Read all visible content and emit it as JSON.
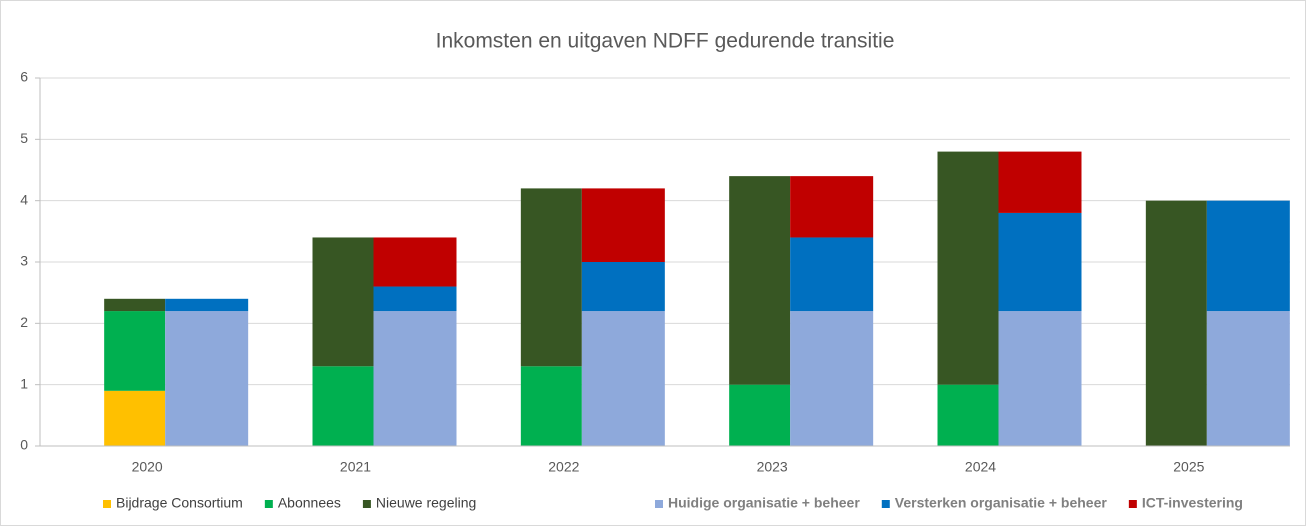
{
  "chart_data": {
    "type": "stacked-bar-groups",
    "title": "Inkomsten en uitgaven NDFF gedurende transitie",
    "categories": [
      "2020",
      "2021",
      "2022",
      "2023",
      "2024",
      "2025"
    ],
    "ylim": [
      0,
      6
    ],
    "yticks": [
      0,
      1,
      2,
      3,
      4,
      5,
      6
    ],
    "grid": true,
    "series": [
      {
        "name": "Bijdrage Consortium",
        "color": "#FFC000",
        "stack": "income",
        "values": [
          0.9,
          0,
          0,
          0,
          0,
          0
        ]
      },
      {
        "name": "Abonnees",
        "color": "#00B050",
        "stack": "income",
        "values": [
          1.3,
          1.3,
          1.3,
          1.0,
          1.0,
          0
        ]
      },
      {
        "name": "Nieuwe regeling",
        "color": "#375623",
        "stack": "income",
        "values": [
          0.2,
          2.1,
          2.9,
          3.4,
          3.8,
          4.0
        ]
      },
      {
        "name": "Huidige organisatie + beheer",
        "color": "#8EA9DB",
        "stack": "expense",
        "values": [
          2.2,
          2.2,
          2.2,
          2.2,
          2.2,
          2.2
        ]
      },
      {
        "name": "Versterken organisatie + beheer",
        "color": "#0070C0",
        "stack": "expense",
        "values": [
          0.2,
          0.4,
          0.8,
          1.2,
          1.6,
          1.8
        ]
      },
      {
        "name": "ICT-investering",
        "color": "#C00000",
        "stack": "expense",
        "values": [
          0,
          0.8,
          1.2,
          1.0,
          1.0,
          0
        ]
      }
    ]
  }
}
